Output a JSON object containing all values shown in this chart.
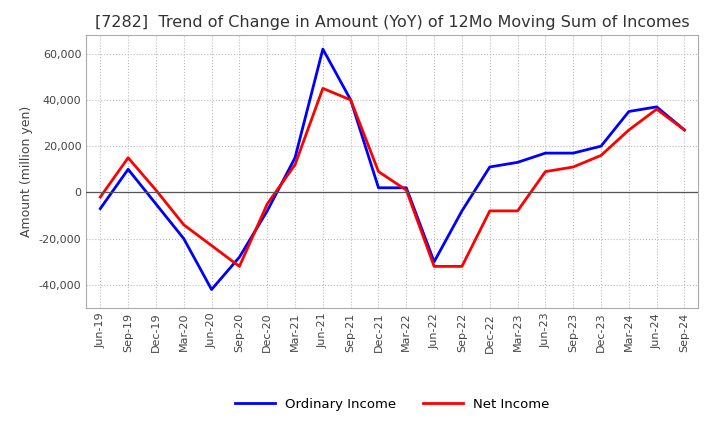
{
  "title": "[7282]  Trend of Change in Amount (YoY) of 12Mo Moving Sum of Incomes",
  "ylabel": "Amount (million yen)",
  "ylim": [
    -50000,
    68000
  ],
  "yticks": [
    -40000,
    -20000,
    0,
    20000,
    40000,
    60000
  ],
  "x_labels": [
    "Jun-19",
    "Sep-19",
    "Dec-19",
    "Mar-20",
    "Jun-20",
    "Sep-20",
    "Dec-20",
    "Mar-21",
    "Jun-21",
    "Sep-21",
    "Dec-21",
    "Mar-22",
    "Jun-22",
    "Sep-22",
    "Dec-22",
    "Mar-23",
    "Jun-23",
    "Sep-23",
    "Dec-23",
    "Mar-24",
    "Jun-24",
    "Sep-24"
  ],
  "ordinary_income": [
    -7000,
    10000,
    -5000,
    -20000,
    -42000,
    -28000,
    -8000,
    15000,
    62000,
    40000,
    2000,
    2000,
    -30000,
    -8000,
    11000,
    13000,
    17000,
    17000,
    20000,
    35000,
    37000,
    27000
  ],
  "net_income": [
    -2000,
    15000,
    1000,
    -14000,
    -23000,
    -32000,
    -5000,
    12000,
    45000,
    40000,
    9000,
    1000,
    -32000,
    -32000,
    -8000,
    -8000,
    9000,
    11000,
    16000,
    27000,
    36000,
    27000
  ],
  "ordinary_income_color": "#0000FF",
  "net_income_color": "#FF0000",
  "line_width": 2.0,
  "grid_color": "#bbbbbb",
  "background_color": "#ffffff",
  "title_fontsize": 11.5,
  "axis_fontsize": 9,
  "tick_fontsize": 8,
  "legend_fontsize": 9.5
}
